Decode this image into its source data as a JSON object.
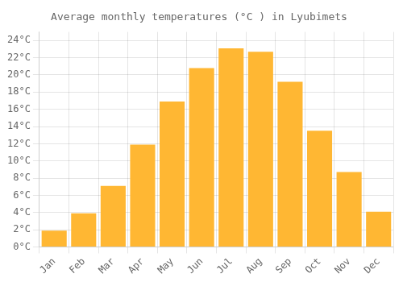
{
  "chart_data": {
    "type": "bar",
    "title": "Average monthly temperatures (°C ) in Lyubimets",
    "categories": [
      "Jan",
      "Feb",
      "Mar",
      "Apr",
      "May",
      "Jun",
      "Jul",
      "Aug",
      "Sep",
      "Oct",
      "Nov",
      "Dec"
    ],
    "values": [
      1.9,
      3.9,
      7.1,
      11.9,
      16.9,
      20.8,
      23.1,
      22.7,
      19.2,
      13.5,
      8.7,
      4.1
    ],
    "color": "#FFB733",
    "ylim": [
      0,
      25
    ],
    "yticks": [
      {
        "value": 0,
        "label": "0°C"
      },
      {
        "value": 2,
        "label": "2°C"
      },
      {
        "value": 4,
        "label": "4°C"
      },
      {
        "value": 6,
        "label": "6°C"
      },
      {
        "value": 8,
        "label": "8°C"
      },
      {
        "value": 10,
        "label": "10°C"
      },
      {
        "value": 12,
        "label": "12°C"
      },
      {
        "value": 14,
        "label": "14°C"
      },
      {
        "value": 16,
        "label": "16°C"
      },
      {
        "value": 18,
        "label": "18°C"
      },
      {
        "value": 20,
        "label": "20°C"
      },
      {
        "value": 22,
        "label": "22°C"
      },
      {
        "value": 24,
        "label": "24°C"
      }
    ],
    "grid": true
  }
}
